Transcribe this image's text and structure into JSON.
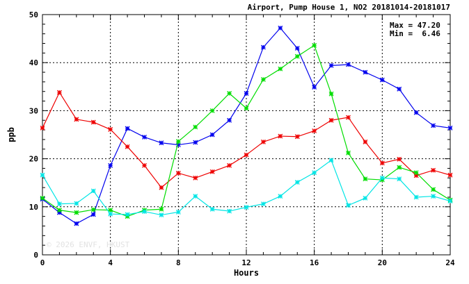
{
  "chart_data": {
    "type": "line",
    "title": "Airport, Pump House 1, NO2 20181014-20181017",
    "xlabel": "Hours",
    "ylabel": "ppb",
    "xlim": [
      0,
      24
    ],
    "ylim": [
      0,
      50
    ],
    "x_ticks": [
      "0",
      "4",
      "8",
      "12",
      "16",
      "20",
      "24"
    ],
    "y_ticks": [
      "0",
      "10",
      "20",
      "30",
      "40",
      "50"
    ],
    "grid": true,
    "stats": {
      "max_label": "Max = 47.20",
      "min_label": "Min =  6.46"
    },
    "watermark": "© 2026 ENVF, HKUST",
    "x": [
      0,
      1,
      2,
      3,
      4,
      5,
      6,
      7,
      8,
      9,
      10,
      11,
      12,
      13,
      14,
      15,
      16,
      17,
      18,
      19,
      20,
      21,
      22,
      23,
      24
    ],
    "series": [
      {
        "color": "#0000ee",
        "values": [
          11.6,
          8.8,
          6.5,
          8.4,
          18.6,
          26.3,
          24.5,
          23.3,
          22.9,
          23.4,
          25.0,
          28.0,
          33.6,
          43.2,
          47.2,
          43.0,
          34.9,
          39.4,
          39.6,
          38.0,
          36.4,
          34.5,
          29.6,
          26.9,
          26.4
        ]
      },
      {
        "color": "#ee0000",
        "values": [
          26.4,
          33.8,
          28.2,
          27.6,
          26.1,
          22.5,
          18.6,
          14.0,
          17.0,
          16.0,
          17.3,
          18.6,
          20.8,
          23.5,
          24.7,
          24.6,
          25.8,
          28.0,
          28.6,
          23.5,
          19.1,
          19.9,
          16.5,
          17.6,
          16.6
        ]
      },
      {
        "color": "#00dd00",
        "values": [
          11.8,
          9.3,
          8.8,
          9.4,
          9.3,
          8.0,
          9.3,
          9.5,
          23.6,
          26.6,
          30.0,
          33.6,
          30.5,
          36.5,
          38.7,
          41.3,
          43.6,
          33.5,
          21.2,
          15.8,
          15.6,
          18.2,
          17.1,
          13.6,
          11.4
        ]
      },
      {
        "color": "#00e5e5",
        "values": [
          16.6,
          10.6,
          10.7,
          13.3,
          8.5,
          8.4,
          9.0,
          8.3,
          8.9,
          12.2,
          9.5,
          9.1,
          9.9,
          10.6,
          12.2,
          15.1,
          17.1,
          19.7,
          10.3,
          11.8,
          16.0,
          15.8,
          12.0,
          12.2,
          11.2
        ]
      }
    ]
  }
}
